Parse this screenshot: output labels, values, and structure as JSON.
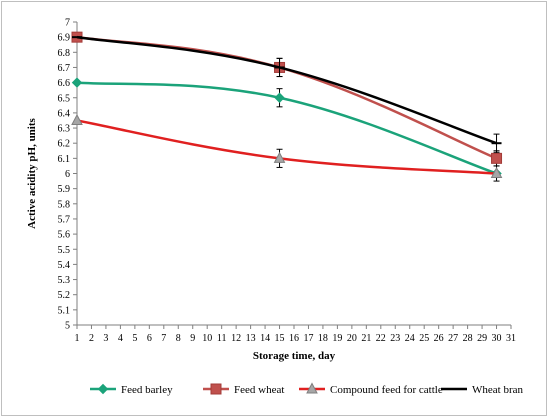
{
  "chart_data": {
    "type": "line",
    "title": "",
    "xlabel": "Storage time, day",
    "ylabel": "Active acidity pH, units",
    "xlim": [
      1,
      31
    ],
    "ylim": [
      5,
      7
    ],
    "ystep": 0.1,
    "xstep": 1,
    "grid": false,
    "legend_position": "bottom",
    "series": [
      {
        "name": "Feed barley",
        "color": "#1ba37a",
        "marker": "diamond",
        "x": [
          1,
          15,
          30
        ],
        "y": [
          6.6,
          6.5,
          6.0
        ],
        "err": [
          0,
          0.06,
          0
        ]
      },
      {
        "name": "Feed wheat",
        "color": "#c0504d",
        "marker": "square",
        "x": [
          1,
          15,
          30
        ],
        "y": [
          6.9,
          6.7,
          6.1
        ],
        "err": [
          0.01,
          0.06,
          0.05
        ]
      },
      {
        "name": "Compound feed for cattle",
        "color": "#e02020",
        "marker": "triangle",
        "x": [
          1,
          15,
          30
        ],
        "y": [
          6.35,
          6.1,
          6.0
        ],
        "err": [
          0,
          0.06,
          0.05
        ]
      },
      {
        "name": "Wheat bran",
        "color": "#000000",
        "marker": "line",
        "x": [
          1,
          15,
          30
        ],
        "y": [
          6.9,
          6.7,
          6.2
        ],
        "err": [
          0,
          0.06,
          0.06
        ]
      }
    ]
  }
}
